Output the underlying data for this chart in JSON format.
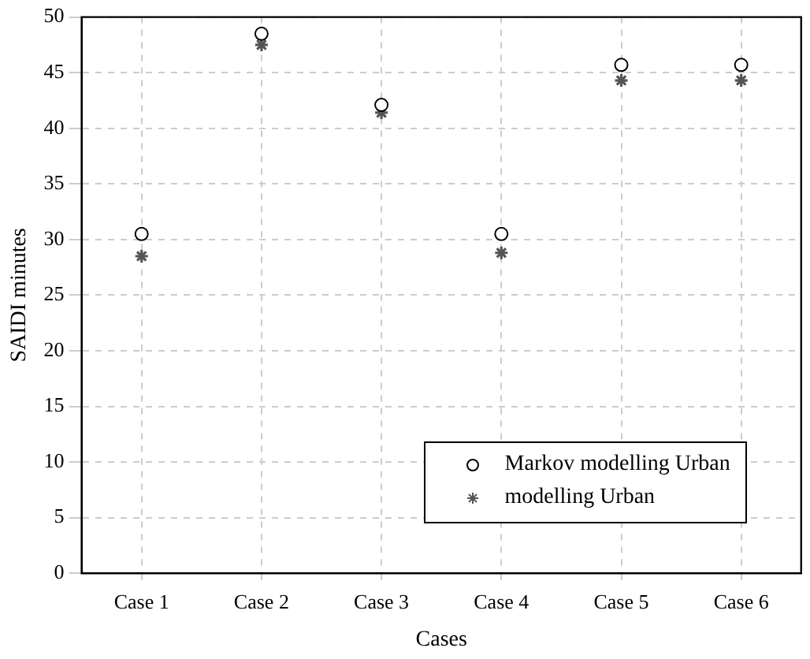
{
  "chart_data": {
    "type": "scatter",
    "xlabel": "Cases",
    "ylabel": "SAIDI minutes",
    "categories": [
      "Case 1",
      "Case 2",
      "Case 3",
      "Case 4",
      "Case 5",
      "Case 6"
    ],
    "series": [
      {
        "name": "Markov modelling Urban",
        "color": "#000000",
        "marker": "circle",
        "values": [
          30.5,
          48.5,
          42.1,
          30.5,
          45.7,
          45.7
        ]
      },
      {
        "name": "modelling Urban",
        "color": "#555555",
        "marker": "cross",
        "values": [
          28.5,
          47.5,
          41.4,
          28.8,
          44.3,
          44.3
        ]
      }
    ],
    "ylim": [
      0,
      50
    ],
    "yticks": [
      0,
      5,
      10,
      15,
      20,
      25,
      30,
      35,
      40,
      45,
      50
    ],
    "grid": true,
    "legend": "bottom right"
  }
}
